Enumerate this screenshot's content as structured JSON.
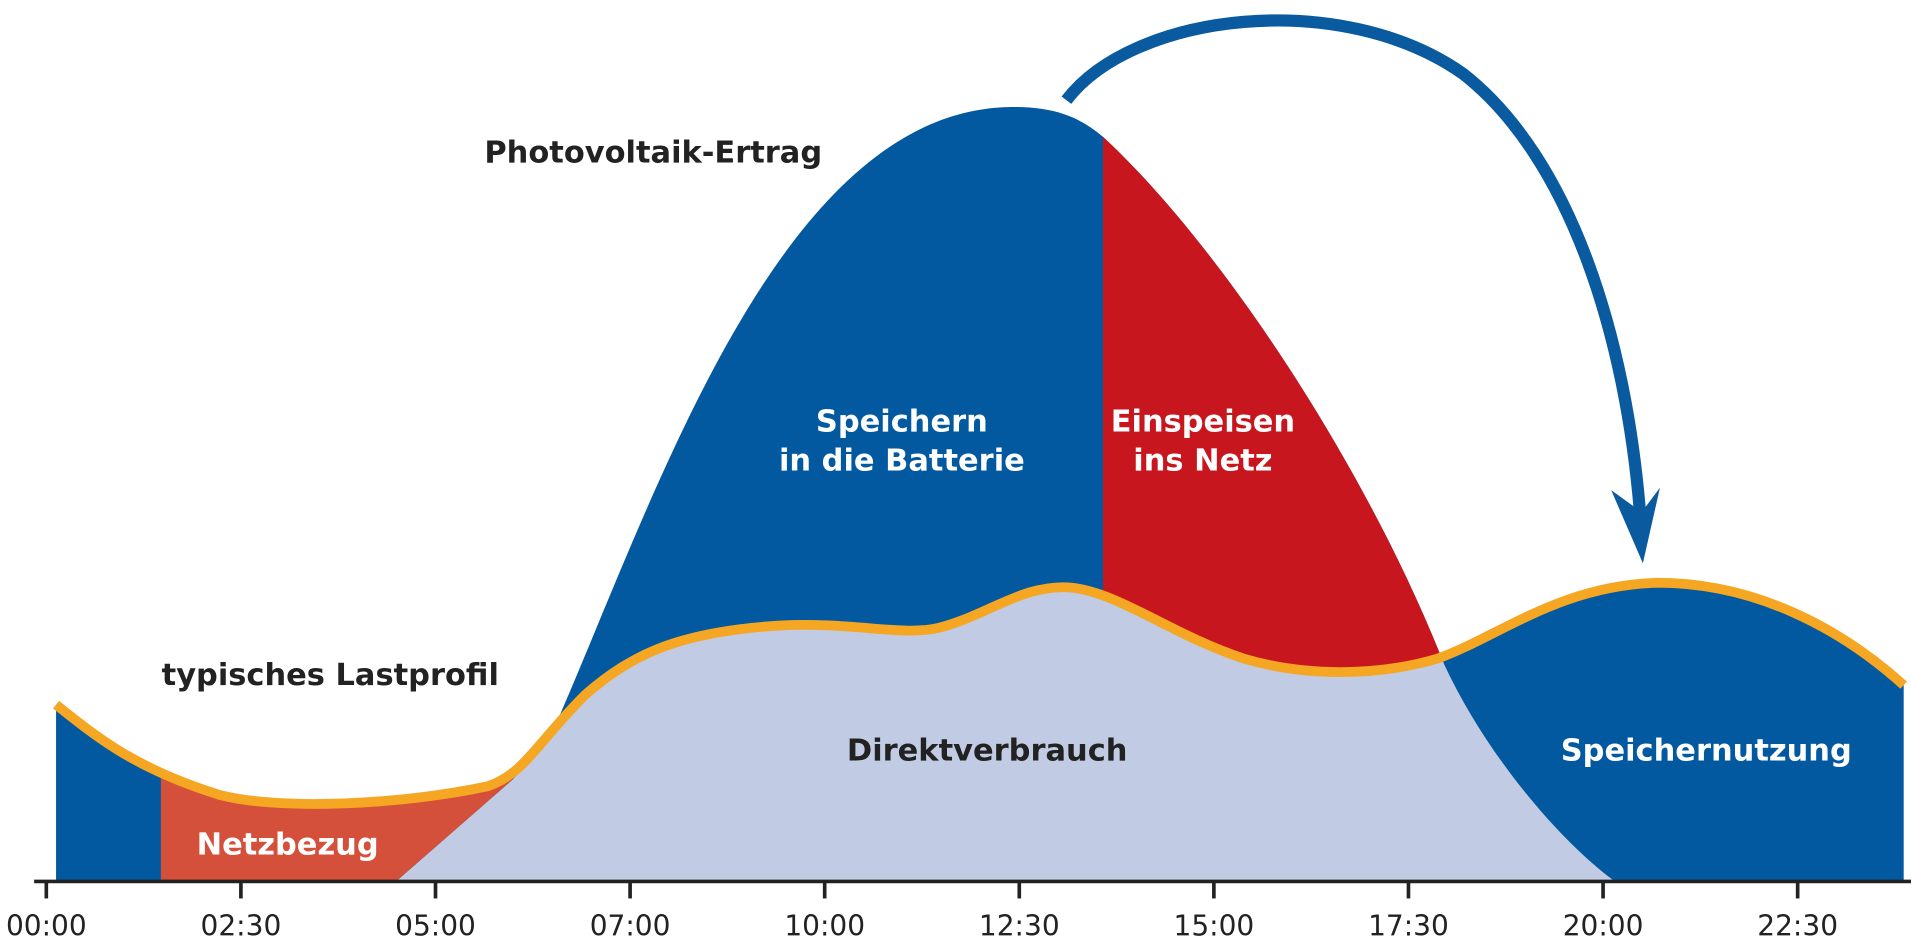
{
  "labels": {
    "pv": "Photovoltaik-Ertrag",
    "load": "typisches Lastprofil",
    "battery": [
      "Speichern",
      "in die Batterie"
    ],
    "feed": [
      "Einspeisen",
      "ins Netz"
    ],
    "direct": "Direktverbrauch",
    "grid": "Netzbezug",
    "storage": "Speichernutzung"
  },
  "ticks": [
    "00:00",
    "02:30",
    "05:00",
    "07:00",
    "10:00",
    "12:30",
    "15:00",
    "17:30",
    "20:00",
    "22:30"
  ]
}
